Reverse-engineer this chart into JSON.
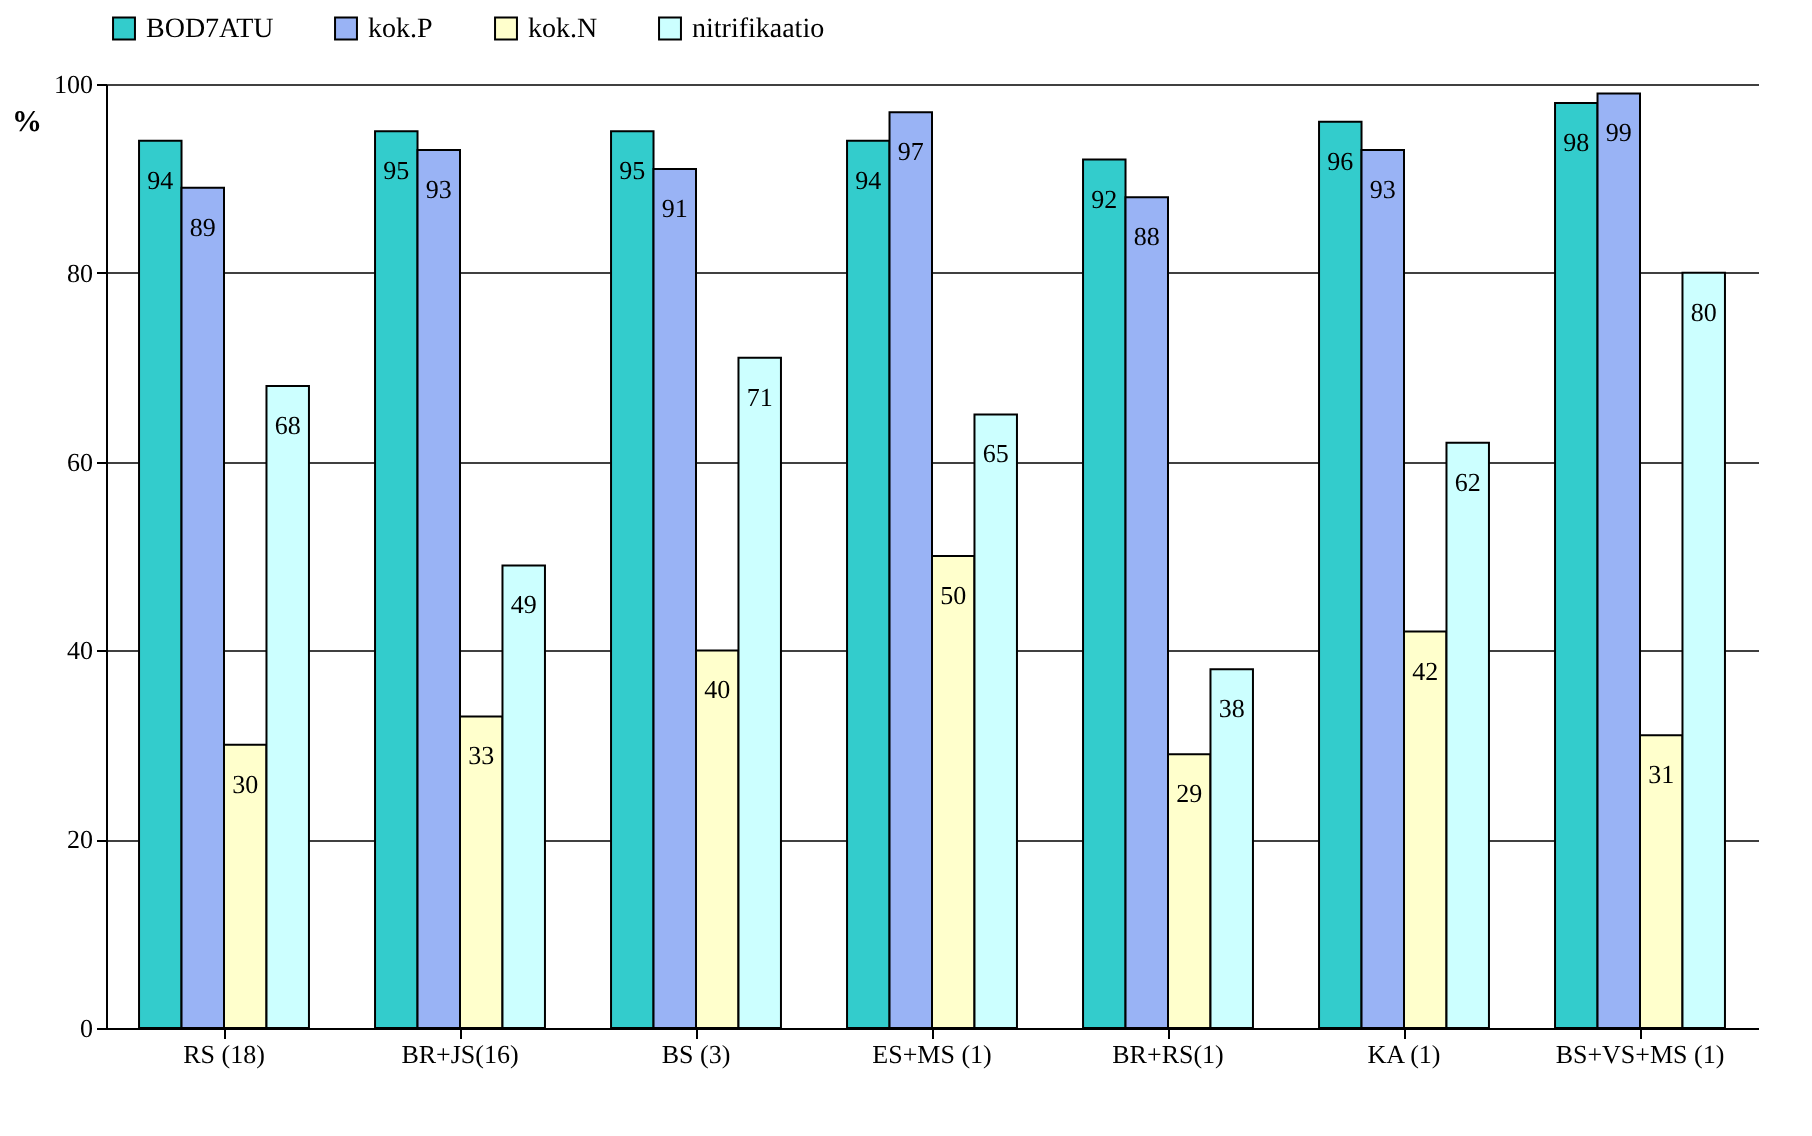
{
  "chart_data": {
    "type": "bar",
    "ylabel": "%",
    "categories": [
      "RS (18)",
      "BR+JS(16)",
      "BS  (3)",
      "ES+MS (1)",
      "BR+RS(1)",
      "KA (1)",
      "BS+VS+MS (1)"
    ],
    "series": [
      {
        "name": "BOD7ATU",
        "color": "#33cccc",
        "values": [
          94,
          95,
          95,
          94,
          92,
          96,
          98
        ]
      },
      {
        "name": "kok.P",
        "color": "#99b3f5",
        "values": [
          89,
          93,
          91,
          97,
          88,
          93,
          99
        ]
      },
      {
        "name": "kok.N",
        "color": "#ffffcc",
        "values": [
          30,
          33,
          40,
          50,
          29,
          42,
          31
        ]
      },
      {
        "name": "nitrifikaatio",
        "color": "#ccffff",
        "values": [
          68,
          49,
          71,
          65,
          38,
          62,
          80
        ]
      }
    ],
    "ylim": [
      0,
      100
    ],
    "yticks": [
      0,
      20,
      40,
      60,
      80,
      100
    ],
    "grid": "y",
    "legend": "top",
    "data_labels": true
  }
}
